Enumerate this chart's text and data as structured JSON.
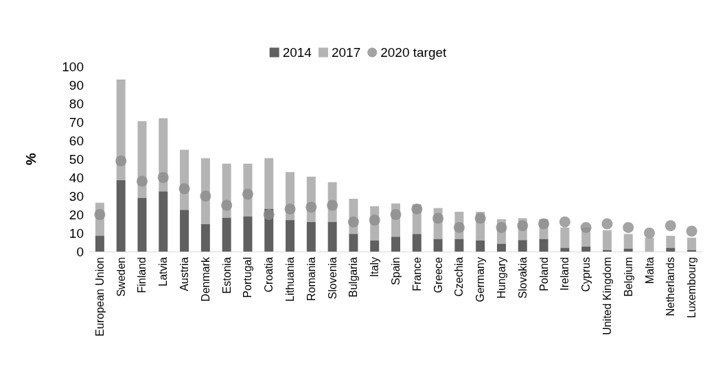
{
  "chart_data": {
    "type": "bar",
    "ylabel": "%",
    "categories": [
      "European Union",
      "Sweden",
      "Finland",
      "Latvia",
      "Austria",
      "Denmark",
      "Estonia",
      "Portugal",
      "Croatia",
      "Lithuania",
      "Romania",
      "Slovenia",
      "Bulgaria",
      "Italy",
      "Spain",
      "France",
      "Greece",
      "Czechia",
      "Germany",
      "Hungary",
      "Slovakia",
      "Poland",
      "Ireland",
      "Cyprus",
      "United Kingdom",
      "Belgium",
      "Malta",
      "Netherlands",
      "Luxembourg"
    ],
    "series": [
      {
        "name": "2014",
        "color": "#606060",
        "values": [
          8.5,
          38.5,
          29,
          32.5,
          22.5,
          14.8,
          18.3,
          19,
          23,
          17,
          16,
          16,
          9.5,
          6,
          8,
          9.5,
          6.8,
          6.8,
          6,
          4.2,
          6.2,
          6.8,
          2,
          2.7,
          0.8,
          1.6,
          0,
          2,
          0.8
        ]
      },
      {
        "name": "2017",
        "color": "#b4b4b4",
        "values": [
          17.9,
          54.5,
          41.5,
          39.5,
          32.5,
          35.7,
          29.2,
          28.5,
          27.5,
          26,
          24.5,
          21.5,
          19,
          18.5,
          18,
          16,
          16.7,
          14.7,
          15.5,
          13.3,
          11.8,
          10.7,
          11,
          10.3,
          10.7,
          7.9,
          7.5,
          6.5,
          6.7
        ]
      },
      {
        "name": "2020 target",
        "type": "scatter",
        "color": "#8c8c8c",
        "x": [
          "European Union",
          "Sweden",
          "Finland",
          "Latvia",
          "Austria",
          "Denmark",
          "Estonia",
          "Portugal",
          "Croatia",
          "Lithuania",
          "Romania",
          "Slovenia",
          "Bulgaria",
          "Italy",
          "Spain",
          "France",
          "Greece",
          "Czechia",
          "Germany",
          "Hungary",
          "Slovakia",
          "Poland",
          "Ireland",
          "Cyprus",
          "United Kingdom",
          "Belgium",
          "Malta",
          "Netherlands",
          "Luxembourg"
        ],
        "values": [
          20,
          49,
          38,
          40,
          34,
          30,
          25,
          31,
          20,
          23,
          24,
          25,
          16,
          17,
          20,
          23,
          18,
          13,
          18,
          13,
          14,
          15,
          16,
          13,
          15,
          13,
          10,
          14,
          11
        ]
      }
    ],
    "ylim": [
      0,
      100
    ],
    "yticks": [
      0,
      10,
      20,
      30,
      40,
      50,
      60,
      70,
      80,
      90,
      100
    ],
    "stacked": true,
    "grid": false,
    "legend": "top",
    "marker": "circle"
  }
}
